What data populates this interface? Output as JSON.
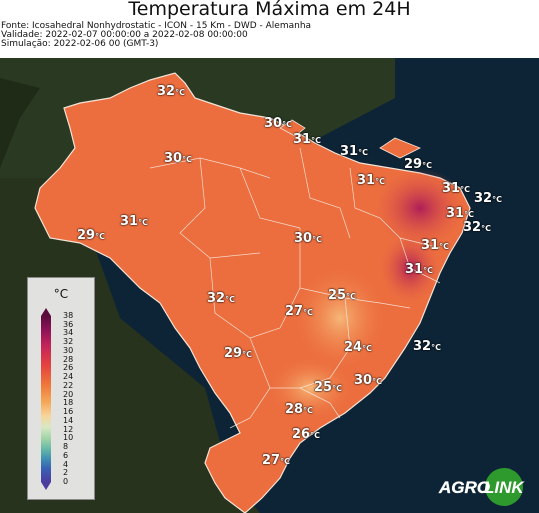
{
  "title": "Temperatura Máxima em 24H",
  "meta": {
    "source": "Fonte: Icosahedral Nonhydrostatic - ICON - 15 Km - DWD - Alemanha",
    "validity": "Validade: 2022-02-07 00:00:00 a 2022-02-08 00:00:00",
    "simulation": "Simulação: 2022-02-06 00 (GMT-3)"
  },
  "unit": "°C",
  "legend": {
    "title": "°C",
    "ticks": [
      "38",
      "36",
      "34",
      "32",
      "30",
      "28",
      "26",
      "24",
      "22",
      "20",
      "18",
      "16",
      "14",
      "12",
      "10",
      "8",
      "6",
      "4",
      "2",
      "0"
    ]
  },
  "labels": [
    "32",
    "30",
    "31",
    "30",
    "31",
    "29",
    "31",
    "31",
    "32",
    "31",
    "32",
    "31",
    "29",
    "30",
    "31",
    "31",
    "32",
    "25",
    "27",
    "24",
    "32",
    "29",
    "30",
    "25",
    "28",
    "26",
    "27"
  ],
  "logo": {
    "text_a": "AGRO",
    "text_b": "LINK"
  },
  "colors": {
    "ocean": "#0b2233",
    "land": "#2f3a1f",
    "brazil": "#ee7040",
    "hot": "#c02a55",
    "accent_green": "#2e9a2e"
  }
}
